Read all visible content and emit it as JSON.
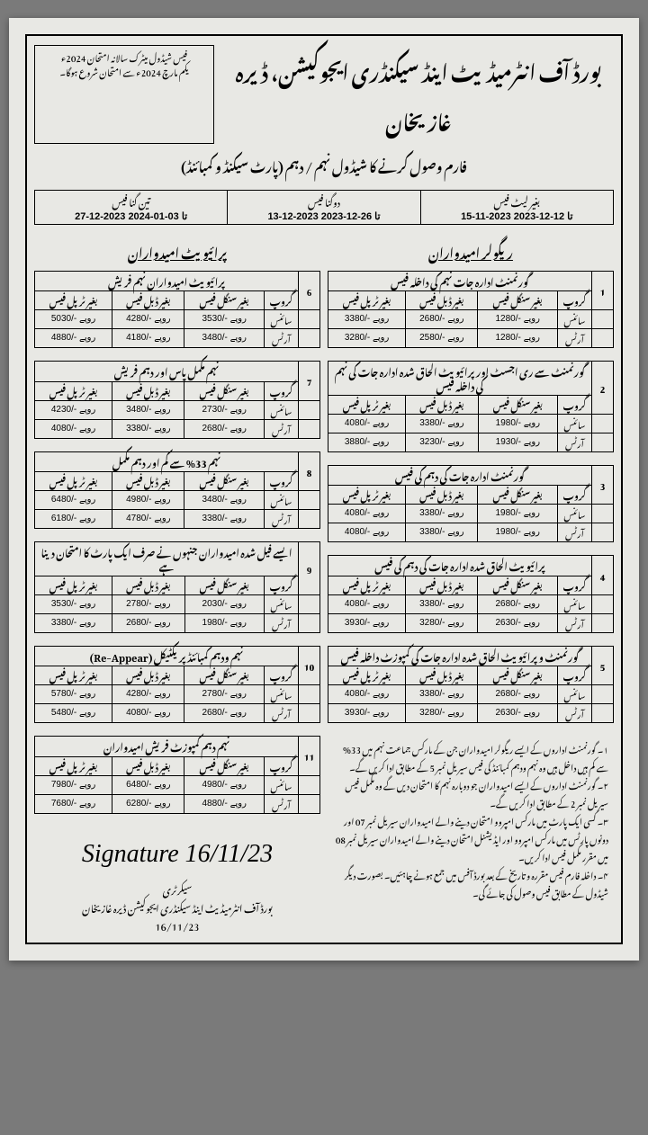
{
  "header": {
    "board": "بورڈ آف انٹرمیڈیٹ اینڈ سیکنڈری ایجوکیشن، ڈیرہ غازیخان",
    "box_line1": "فیس شیڈول میٹرک سالانہ امتحان 2024ء",
    "box_line2": "یکم مارچ 2024ء سے امتحان شروع ہوگا۔",
    "subtitle": "فارم وصول کرنے کا شیڈول نہم / دہم (پارٹ سیکنڈ و کمبائنڈ)"
  },
  "dates": {
    "c1_label": "بغیر لیٹ فیس",
    "c1_range": "15-11-2023 تا 12-12-2023",
    "c2_label": "دوگنا فیس",
    "c2_range": "13-12-2023 تا 26-12-2023",
    "c3_label": "تین گنا فیس",
    "c3_range": "27-12-2023 تا 03-01-2024"
  },
  "col_heads": {
    "regular": "ریگولر امیدواران",
    "private": "پرائیویٹ امیدواران"
  },
  "labels": {
    "group": "گروپ",
    "single": "بغیر سنگل فیس",
    "double": "بغیر ڈبل فیس",
    "triple": "بغیر ٹرپل فیس",
    "science": "سائنس",
    "arts": "آرٹس"
  },
  "reg": {
    "t1": {
      "num": "1",
      "title": "گورنمنٹ ادارہ جات نہم کی داخلہ فیس",
      "sci": [
        "1280/- روپے",
        "2680/- روپے",
        "3380/- روپے"
      ],
      "art": [
        "1280/- روپے",
        "2580/- روپے",
        "3280/- روپے"
      ]
    },
    "t2": {
      "num": "2",
      "title": "گورنمنٹ سے ری اجسٹ اور پرائیویٹ الحاق شدہ ادارہ جات کی نہم کی داخلہ فیس",
      "sci": [
        "1980/- روپے",
        "3380/- روپے",
        "4080/- روپے"
      ],
      "art": [
        "1930/- روپے",
        "3230/- روپے",
        "3880/- روپے"
      ]
    },
    "t3": {
      "num": "3",
      "title": "گورنمنٹ ادارہ جات کی دہم کی فیس",
      "sci": [
        "1980/- روپے",
        "3380/- روپے",
        "4080/- روپے"
      ],
      "art": [
        "1980/- روپے",
        "3380/- روپے",
        "4080/- روپے"
      ]
    },
    "t4": {
      "num": "4",
      "title": "پرائیویٹ الحاق شدہ ادارہ جات کی دہم کی فیس",
      "sci": [
        "2680/- روپے",
        "3380/- روپے",
        "4080/- روپے"
      ],
      "art": [
        "2630/- روپے",
        "3280/- روپے",
        "3930/- روپے"
      ]
    },
    "t5": {
      "num": "5",
      "title": "گورنمنٹ و پرائیویٹ الحاق شدہ ادارہ جات کی کمپوزٹ داخلہ فیس",
      "sci": [
        "2680/- روپے",
        "3380/- روپے",
        "4080/- روپے"
      ],
      "art": [
        "2630/- روپے",
        "3280/- روپے",
        "3930/- روپے"
      ]
    }
  },
  "priv": {
    "t6": {
      "num": "6",
      "title": "پرائیویٹ امیدواران نہم فریش",
      "sci": [
        "3530/- روپے",
        "4280/- روپے",
        "5030/- روپے"
      ],
      "art": [
        "3480/- روپے",
        "4180/- روپے",
        "4880/- روپے"
      ]
    },
    "t7": {
      "num": "7",
      "title": "نہم مکمل پاس اور دہم فریش",
      "sci": [
        "2730/- روپے",
        "3480/- روپے",
        "4230/- روپے"
      ],
      "art": [
        "2680/- روپے",
        "3380/- روپے",
        "4080/- روپے"
      ]
    },
    "t8": {
      "num": "8",
      "title": "نہم 33% سے کم اور دہم مکمل",
      "sci": [
        "3480/- روپے",
        "4980/- روپے",
        "6480/- روپے"
      ],
      "art": [
        "3380/- روپے",
        "4780/- روپے",
        "6180/- روپے"
      ]
    },
    "t9": {
      "num": "9",
      "title": "ایسے فیل شدہ امیدواران جنہوں نے صرف ایک پارٹ کا امتحان دینا ہے",
      "sci": [
        "2030/- روپے",
        "2780/- روپے",
        "3530/- روپے"
      ],
      "art": [
        "1980/- روپے",
        "2680/- روپے",
        "3380/- روپے"
      ]
    },
    "t10": {
      "num": "10",
      "title": "نہم ودہم کمبائنڈ پریکٹیکل (Re-Appear)",
      "sci": [
        "2780/- روپے",
        "4280/- روپے",
        "5780/- روپے"
      ],
      "art": [
        "2680/- روپے",
        "4080/- روپے",
        "5480/- روپے"
      ]
    },
    "t11": {
      "num": "11",
      "title": "نہم دہم کمپوزٹ فریش امیدواران",
      "sci": [
        "4980/- روپے",
        "6480/- روپے",
        "7980/- روپے"
      ],
      "art": [
        "4880/- روپے",
        "6280/- روپے",
        "7680/- روپے"
      ]
    }
  },
  "notes": {
    "n1": "۱۔ گورنمنٹ اداروں کے ایسے ریگولر امیدواران جن کے مارکس جماعت نہم میں 33% سے کم ہیں داخل ہیں وہ نہم ودہم کمبائنڈ کی فیس سیریل نمبر 5 کے مطابق ادا کریں گے۔",
    "n2": "۲۔ گورنمنٹ اداروں کے ایسے امیدواران جو دوبارہ نہم کا امتحان دیں گے وہ مکمل فیس سیریل نمبر 2 کے مطابق ادا کریں گے۔",
    "n3": "۳۔ کسی ایک پارٹ میں مارکس امپروو امتحان دینے والے امیدواران سیریل نمبر 07 اور دونوں پارٹس میں مارکس امپروو اور ایڈیشنل امتحان دینے والے امیدواران سیریل نمبر 08 میں مقرر مکمل فیس ادا کریں۔",
    "n4": "۴۔ داخلہ فارم فیس مقررہ و تاریخ کے بعد بورڈ آفس میں جمع ہونے چاہئیں۔ بصورت دیگر شیڈول کے مطابق فیس وصول کی جائے گی۔"
  },
  "signature": {
    "script": "Signature 16/11/23",
    "line1": "سیکرٹری",
    "line2": "بورڈ آف انٹرمیڈیٹ اینڈ سیکنڈری ایجوکیشن ڈیرہ غازیخان",
    "line3": "16/11/23"
  }
}
